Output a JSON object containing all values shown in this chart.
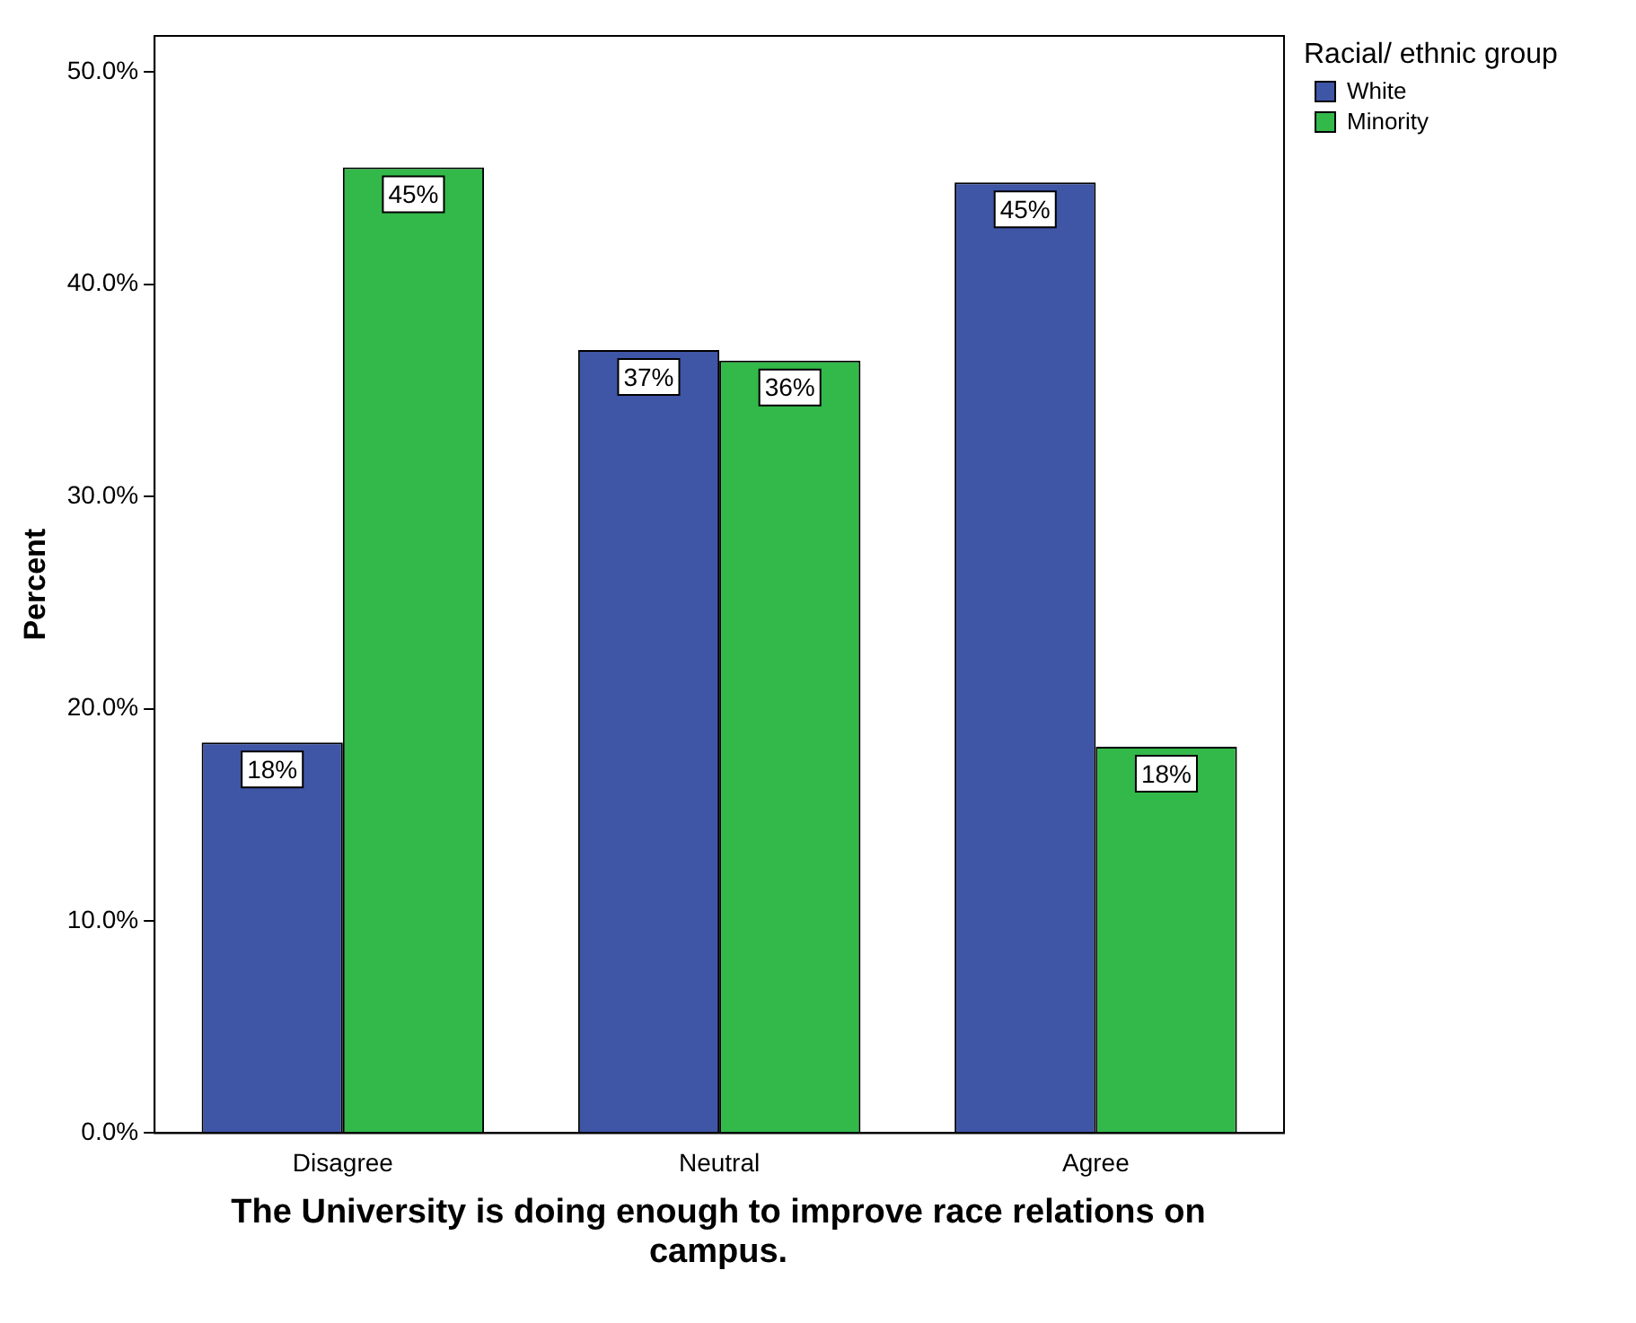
{
  "chart_data": {
    "type": "bar",
    "xlabel": "The University is doing enough to improve race relations on campus.",
    "ylabel": "Percent",
    "legend_title": "Racial/ ethnic group",
    "categories": [
      "Disagree",
      "Neutral",
      "Agree"
    ],
    "series": [
      {
        "name": "White",
        "color": "#3f55a6",
        "values": [
          18.4,
          36.9,
          44.8
        ],
        "value_labels": [
          "18%",
          "37%",
          "45%"
        ]
      },
      {
        "name": "Minority",
        "color": "#33b84a",
        "values": [
          45.5,
          36.4,
          18.2
        ],
        "value_labels": [
          "45%",
          "36%",
          "18%"
        ]
      }
    ],
    "ylim": [
      0,
      51.7
    ],
    "yticks": [
      {
        "value": 0,
        "label": "0.0%"
      },
      {
        "value": 10,
        "label": "10.0%"
      },
      {
        "value": 20,
        "label": "20.0%"
      },
      {
        "value": 30,
        "label": "30.0%"
      },
      {
        "value": 40,
        "label": "40.0%"
      },
      {
        "value": 50,
        "label": "50.0%"
      }
    ],
    "grid": false,
    "legend": "top right"
  }
}
